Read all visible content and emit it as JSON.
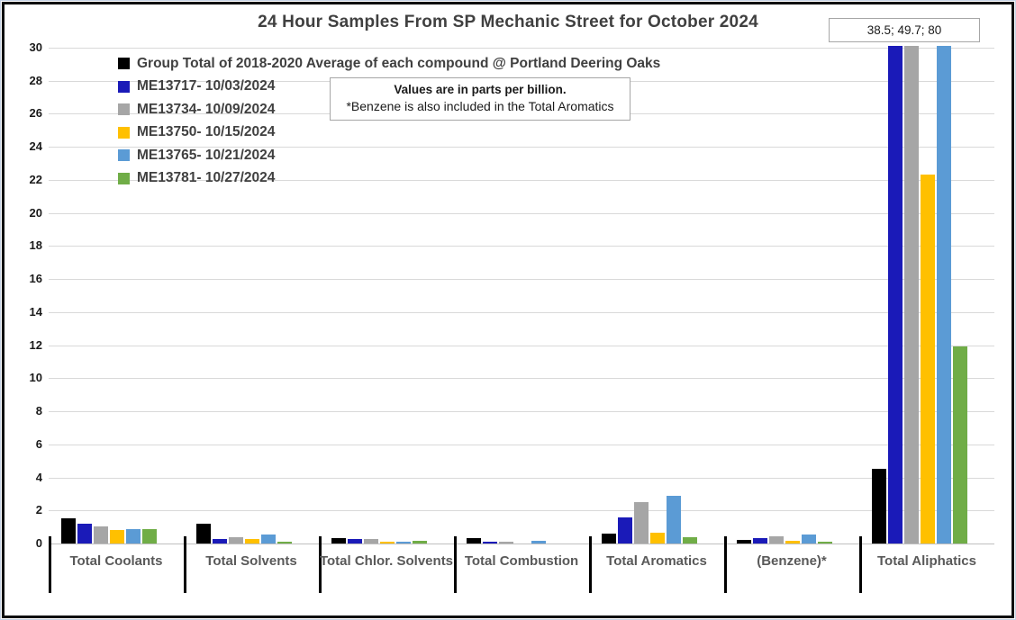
{
  "title": "24 Hour Samples From SP Mechanic Street for October 2024",
  "note": {
    "line1": "Values are in parts per billion.",
    "line2": "*Benzene is also included in the Total Aromatics"
  },
  "annotation": {
    "text": "38.5; 49.7; 80"
  },
  "chart_data": {
    "type": "bar",
    "title": "24 Hour Samples From SP Mechanic Street for October 2024",
    "unit": "parts per billion",
    "ylim": [
      0,
      30
    ],
    "ytick_step": 2,
    "grid": true,
    "legend_position": "top-left-inside",
    "categories": [
      "Total Coolants",
      "Total Solvents",
      "Total Chlor. Solvents",
      "Total Combustion",
      "Total Aromatics",
      "(Benzene)*",
      "Total Aliphatics"
    ],
    "series": [
      {
        "name": "Group Total of 2018-2020 Average of each compound @ Portland Deering Oaks",
        "color": "#000000",
        "values": [
          1.5,
          1.2,
          0.35,
          0.3,
          0.6,
          0.2,
          4.5
        ]
      },
      {
        "name": "ME13717- 10/03/2024",
        "color": "#1A1AB8",
        "values": [
          1.2,
          0.25,
          0.25,
          0.1,
          1.6,
          0.3,
          38.5
        ]
      },
      {
        "name": "ME13734- 10/09/2024",
        "color": "#A6A6A6",
        "values": [
          1.05,
          0.4,
          0.25,
          0.1,
          2.5,
          0.45,
          49.7
        ]
      },
      {
        "name": "ME13750- 10/15/2024",
        "color": "#FFC000",
        "values": [
          0.8,
          0.25,
          0.1,
          0,
          0.65,
          0.15,
          22.3
        ]
      },
      {
        "name": "ME13765- 10/21/2024",
        "color": "#5B9BD5",
        "values": [
          0.85,
          0.55,
          0.12,
          0.18,
          2.9,
          0.55,
          80
        ]
      },
      {
        "name": "ME13781- 10/27/2024",
        "color": "#70AD47",
        "values": [
          0.85,
          0.1,
          0.15,
          0,
          0.4,
          0.1,
          11.9
        ]
      }
    ],
    "clipping": {
      "note": "Bars taller than y-axis max (30) are clipped at the top of the plot; the boxed annotation lists their true values for Total Aliphatics",
      "clipped_values": [
        38.5,
        49.7,
        80
      ]
    }
  }
}
